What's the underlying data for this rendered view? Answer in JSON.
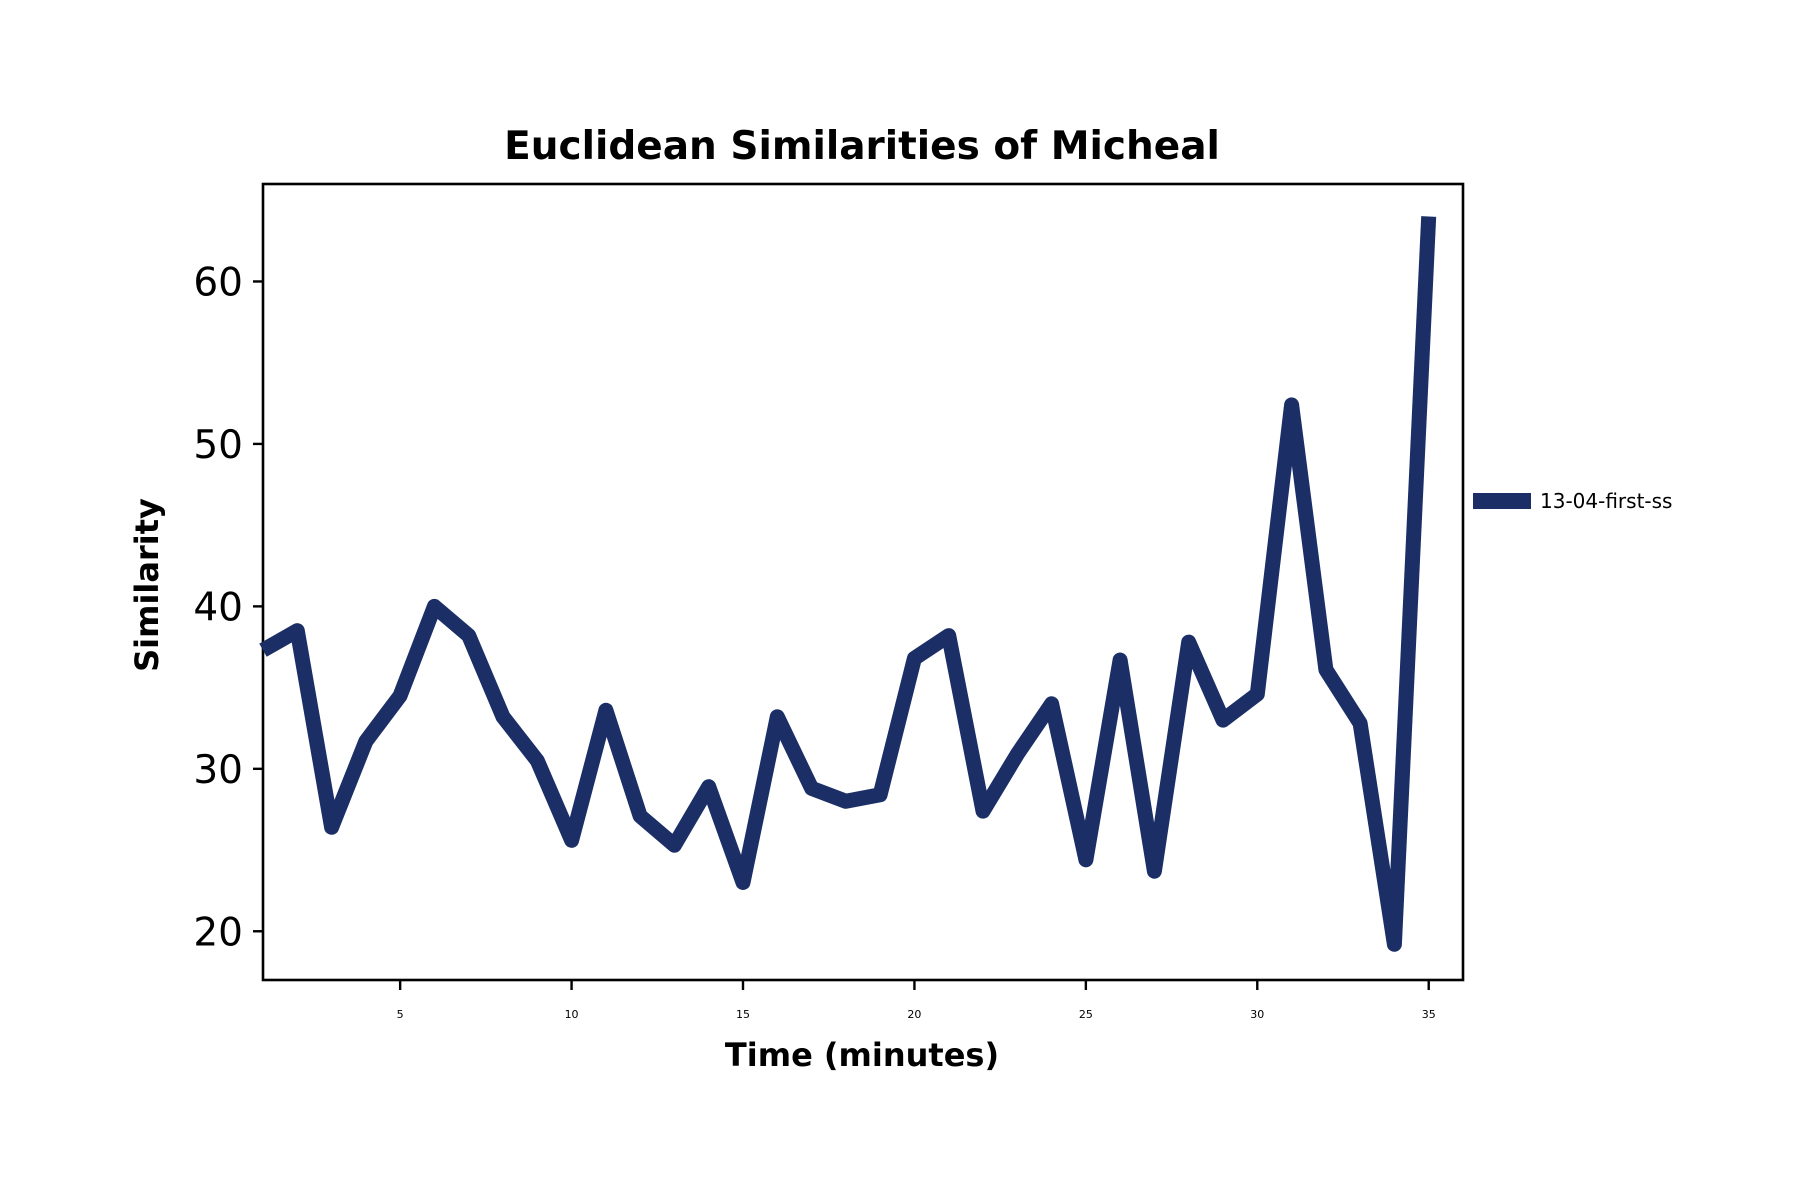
{
  "chart_data": {
    "type": "line",
    "title": "Euclidean Similarities of Micheal",
    "xlabel": "Time (minutes)",
    "ylabel": "Similarity",
    "xlim": [
      1,
      36
    ],
    "ylim": [
      17,
      66
    ],
    "xticks": [
      5,
      10,
      15,
      20,
      25,
      30,
      35
    ],
    "yticks": [
      20,
      30,
      40,
      50,
      60
    ],
    "grid": false,
    "legend": {
      "placement": "right"
    },
    "series": [
      {
        "name": "13-04-first-ss",
        "color": "#1b2f66",
        "x": [
          1,
          2,
          3,
          4,
          5,
          6,
          7,
          8,
          9,
          10,
          11,
          12,
          13,
          14,
          15,
          16,
          17,
          18,
          19,
          20,
          21,
          22,
          23,
          24,
          25,
          26,
          27,
          28,
          29,
          30,
          31,
          32,
          33,
          34,
          35
        ],
        "y": [
          37.3,
          38.5,
          26.4,
          31.7,
          34.5,
          40.0,
          38.2,
          33.2,
          30.5,
          25.6,
          33.6,
          27.1,
          25.3,
          28.9,
          23.0,
          33.2,
          28.8,
          28.0,
          28.4,
          36.8,
          38.2,
          27.4,
          30.9,
          34.0,
          24.4,
          36.7,
          23.7,
          37.8,
          33.0,
          34.6,
          52.4,
          36.1,
          32.8,
          19.2,
          64.0
        ]
      }
    ]
  }
}
